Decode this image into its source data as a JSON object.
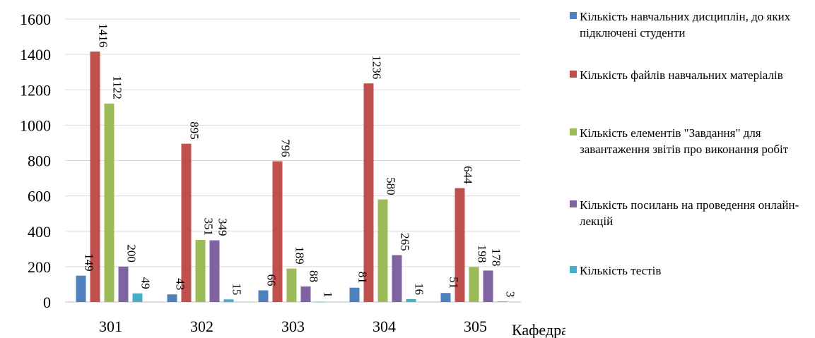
{
  "chart_data": {
    "type": "bar",
    "categories": [
      "301",
      "302",
      "303",
      "304",
      "305"
    ],
    "series": [
      {
        "name": "Кількість навчальних дисциплін, до яких підключені студенти",
        "color": "#4F81BD",
        "values": [
          149,
          43,
          66,
          81,
          51
        ]
      },
      {
        "name": "Кількість файлів навчальних матеріалів",
        "color": "#C0504D",
        "values": [
          1416,
          895,
          796,
          1236,
          644
        ]
      },
      {
        "name": "Кількість елементів \"Завдання\" для завантаження звітів про виконання робіт",
        "color": "#9BBB59",
        "values": [
          1122,
          351,
          189,
          580,
          198
        ]
      },
      {
        "name": "Кількість посилань на проведення онлайн-лекцій",
        "color": "#8064A2",
        "values": [
          200,
          349,
          88,
          265,
          178
        ]
      },
      {
        "name": "Кількість тестів",
        "color": "#4BACC6",
        "values": [
          49,
          15,
          1,
          16,
          3
        ]
      }
    ],
    "xlabel": "Кафедра",
    "ylabel": "",
    "ylim": [
      0,
      1600
    ],
    "yticks": [
      0,
      200,
      400,
      600,
      800,
      1000,
      1200,
      1400,
      1600
    ],
    "grid": true,
    "legend": "right"
  }
}
